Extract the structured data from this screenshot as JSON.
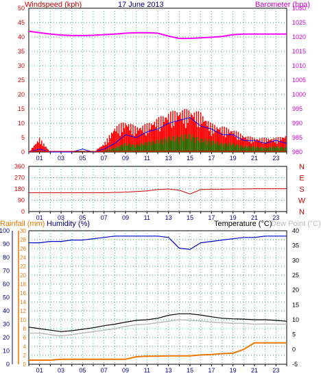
{
  "header": {
    "wind_title": "Windspeed (kph)",
    "date": "17 June 2013",
    "baro_title": "Barometer (hpa)"
  },
  "lower_header": {
    "rainfall": "Rainfall (mm)",
    "humidity": "Humidity (%)",
    "temperature": "Temperature (°C)",
    "dewpoint": "Dew Point (°C)"
  },
  "colors": {
    "wind_gust": "#ff0000",
    "wind_avg": "#0000ff",
    "wind_min": "#008000",
    "barometer": "#ff00ff",
    "direction": "#cc0000",
    "humidity": "#0000cc",
    "temperature": "#000000",
    "dewpoint": "#bbbbbb",
    "rainfall": "#ee7700",
    "grid": "#33aa88",
    "axis_red": "#cc0000",
    "axis_blue": "#000080"
  },
  "x_ticks": [
    "01",
    "03",
    "05",
    "07",
    "09",
    "11",
    "13",
    "15",
    "17",
    "19",
    "21",
    "23"
  ],
  "chart_data": [
    {
      "type": "line",
      "name_hint": "wind-barometer",
      "x": [
        0,
        1,
        2,
        3,
        4,
        5,
        6,
        7,
        8,
        9,
        10,
        11,
        12,
        13,
        14,
        15,
        16,
        17,
        18,
        19,
        20,
        21,
        22,
        23,
        24
      ],
      "series": [
        {
          "name": "Windspeed (kph)",
          "axis": "left",
          "values": [
            0,
            1,
            0,
            0,
            0,
            1,
            0,
            1,
            3,
            6,
            5,
            7,
            8,
            10,
            11,
            12,
            9,
            8,
            6,
            6,
            4,
            4,
            3,
            4,
            3
          ]
        },
        {
          "name": "Gust",
          "axis": "left",
          "values": [
            0,
            5,
            0,
            0,
            0,
            0,
            0,
            3,
            9,
            11,
            9,
            10,
            12,
            14,
            15,
            15,
            14,
            10,
            9,
            8,
            6,
            5,
            5,
            5,
            6
          ]
        },
        {
          "name": "Barometer (hpa)",
          "axis": "right",
          "values": [
            1022,
            1021.5,
            1021,
            1020.7,
            1020.5,
            1020.5,
            1020.6,
            1020.8,
            1021,
            1021.3,
            1021.5,
            1021.5,
            1021.3,
            1020.3,
            1019.5,
            1019.5,
            1019.7,
            1019.9,
            1020.2,
            1020.8,
            1021,
            1021,
            1021,
            1021,
            1021
          ]
        }
      ],
      "y_left_ticks": [
        "0",
        "5",
        "10",
        "15",
        "20",
        "25",
        "30",
        "35",
        "40",
        "45",
        "50"
      ],
      "y_right_ticks": [
        "980",
        "985",
        "990",
        "995",
        "1000",
        "1005",
        "1010",
        "1015",
        "1020",
        "1025",
        "1030"
      ],
      "ylim_left": [
        0,
        50
      ],
      "ylim_right": [
        980,
        1030
      ]
    },
    {
      "type": "line",
      "name_hint": "wind-direction",
      "x": [
        0,
        1,
        2,
        3,
        4,
        5,
        6,
        7,
        8,
        9,
        10,
        11,
        12,
        13,
        14,
        15,
        16,
        17,
        18,
        19,
        20,
        21,
        22,
        23,
        24
      ],
      "series": [
        {
          "name": "Wind direction",
          "axis": "left",
          "values": [
            150,
            150,
            150,
            150,
            150,
            150,
            150,
            150,
            152,
            155,
            160,
            165,
            175,
            180,
            170,
            140,
            175,
            178,
            178,
            180,
            180,
            182,
            182,
            182,
            182
          ]
        }
      ],
      "y_left_ticks": [
        "0",
        "90",
        "180",
        "270",
        "360"
      ],
      "compass_labels": [
        "N",
        "W",
        "S",
        "E",
        "N"
      ],
      "ylim": [
        0,
        360
      ]
    },
    {
      "type": "line",
      "name_hint": "humidity-temperature-rain",
      "x": [
        0,
        1,
        2,
        3,
        4,
        5,
        6,
        7,
        8,
        9,
        10,
        11,
        12,
        13,
        14,
        15,
        16,
        17,
        18,
        19,
        20,
        21,
        22,
        23,
        24
      ],
      "series": [
        {
          "name": "Humidity (%)",
          "axis": "left-humidity",
          "values": [
            91,
            91,
            92,
            92,
            93,
            93,
            94,
            95,
            96,
            96,
            96,
            96,
            96,
            95,
            87,
            86,
            91,
            92,
            93,
            94,
            95,
            95,
            96,
            96,
            96
          ]
        },
        {
          "name": "Temperature (°C)",
          "axis": "right",
          "values": [
            7.5,
            7,
            6.5,
            6,
            6.3,
            6.8,
            7.3,
            8,
            8.5,
            9.2,
            9.8,
            10,
            10.5,
            11.5,
            12,
            12,
            11.6,
            11,
            10.5,
            10.3,
            10.2,
            10,
            10,
            9.8,
            9.5
          ]
        },
        {
          "name": "Dew Point (°C)",
          "axis": "right",
          "values": [
            5.5,
            5.5,
            5,
            4.5,
            5,
            5.5,
            6,
            6.5,
            7,
            7.8,
            8.3,
            8.5,
            9,
            9.5,
            10,
            9.8,
            9.6,
            9.2,
            9,
            8.8,
            8.8,
            8.5,
            8.6,
            8.5,
            8.5
          ]
        },
        {
          "name": "Rainfall (mm)",
          "axis": "left-rain",
          "values": [
            0,
            0,
            0,
            0.2,
            0.2,
            0.2,
            0.2,
            0.2,
            0.2,
            0.2,
            0.8,
            0.9,
            0.9,
            1,
            1,
            1,
            1.2,
            1.3,
            1.5,
            1.6,
            2.5,
            4,
            4,
            4,
            4
          ]
        }
      ],
      "y_rain_ticks": [
        "0",
        "2",
        "4",
        "6",
        "8",
        "10",
        "12",
        "14",
        "16",
        "18",
        "20",
        "22",
        "24",
        "26",
        "28",
        "30"
      ],
      "y_humidity_ticks": [
        "0",
        "10",
        "20",
        "30",
        "40",
        "50",
        "60",
        "70",
        "80",
        "90",
        "100"
      ],
      "y_temp_ticks": [
        "-5",
        "0",
        "5",
        "10",
        "15",
        "20",
        "25",
        "30",
        "35",
        "40"
      ],
      "ylim_humidity": [
        0,
        100
      ],
      "ylim_temperature": [
        -5,
        40
      ],
      "ylim_rain": [
        0,
        30
      ]
    }
  ]
}
